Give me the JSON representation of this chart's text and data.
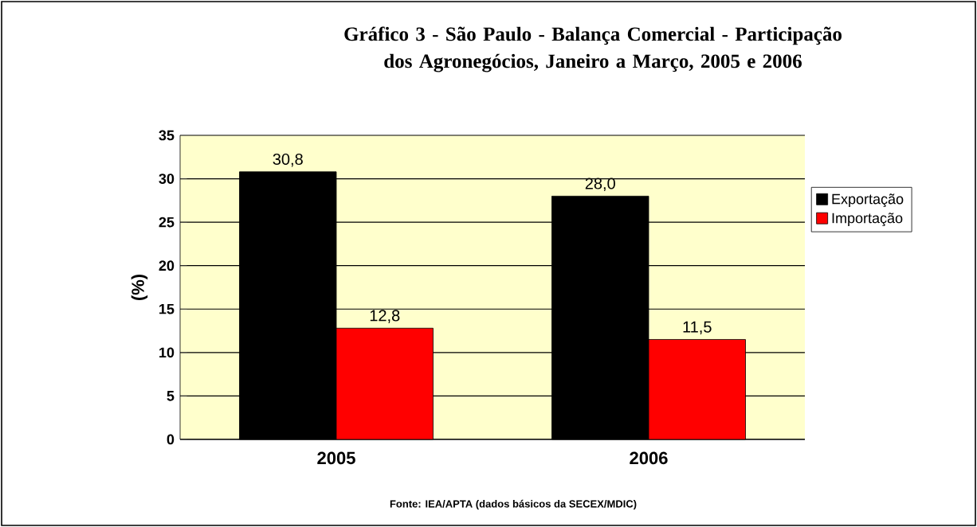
{
  "chart_data": {
    "type": "bar",
    "title": "Gráfico 3 - São Paulo - Balança Comercial - Participação dos Agronegócios, Janeiro a Março, 2005 e 2006",
    "ylabel": "(%)",
    "categories": [
      "2005",
      "2006"
    ],
    "series": [
      {
        "name": "Exportação",
        "color": "#000000",
        "values": [
          30.8,
          28.0
        ],
        "value_labels": [
          "30,8",
          "28,0"
        ]
      },
      {
        "name": "Importação",
        "color": "#ff0000",
        "values": [
          12.8,
          11.5
        ],
        "value_labels": [
          "12,8",
          "11,5"
        ]
      }
    ],
    "ylim": [
      0,
      35
    ],
    "yticks": [
      0,
      5,
      10,
      15,
      20,
      25,
      30,
      35
    ],
    "grid": "y",
    "legend": "right",
    "annotations": [
      "Fonte: IEA/APTA (dados básicos da SECEX/MDIC)"
    ]
  }
}
